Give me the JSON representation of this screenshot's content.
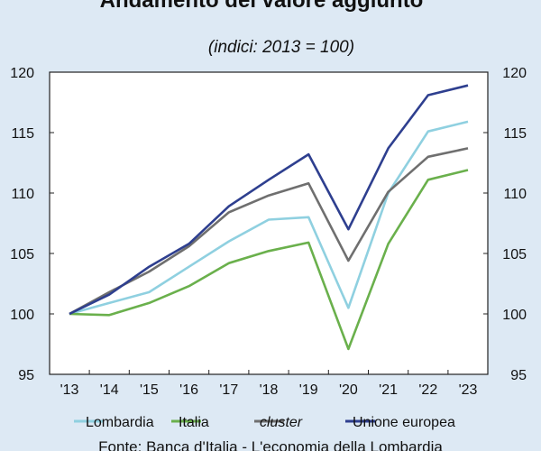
{
  "chart_data": {
    "type": "line",
    "title": "Andamento del valore aggiunto",
    "subtitle": "(indici: 2013 = 100)",
    "categories": [
      "'13",
      "'14",
      "'15",
      "'16",
      "'17",
      "'18",
      "'19",
      "'20",
      "'21",
      "'22",
      "'23"
    ],
    "ylim": [
      95,
      120
    ],
    "yticks": [
      95,
      100,
      105,
      110,
      115,
      120
    ],
    "grid": false,
    "legend_position": "bottom",
    "series": [
      {
        "name": "Lombardia",
        "color": "#8fd0e0",
        "italic": false,
        "values": [
          100,
          100.9,
          101.8,
          103.9,
          106.0,
          107.8,
          108.0,
          100.5,
          110.0,
          115.1,
          115.9
        ]
      },
      {
        "name": "Italia",
        "color": "#6ab04c",
        "italic": false,
        "values": [
          100,
          99.9,
          100.9,
          102.3,
          104.2,
          105.2,
          105.9,
          97.1,
          105.8,
          111.1,
          111.9
        ]
      },
      {
        "name": "cluster",
        "color": "#6f6f6f",
        "italic": true,
        "values": [
          100,
          101.8,
          103.5,
          105.6,
          108.4,
          109.8,
          110.8,
          104.4,
          110.1,
          113.0,
          113.7
        ]
      },
      {
        "name": "Unione europea",
        "color": "#2e3f8f",
        "italic": false,
        "values": [
          100,
          101.6,
          103.9,
          105.8,
          108.9,
          111.1,
          113.2,
          107.0,
          113.7,
          118.1,
          118.9
        ]
      }
    ],
    "source": "Fonte: Banca d'Italia - L'economia della Lombardia"
  }
}
